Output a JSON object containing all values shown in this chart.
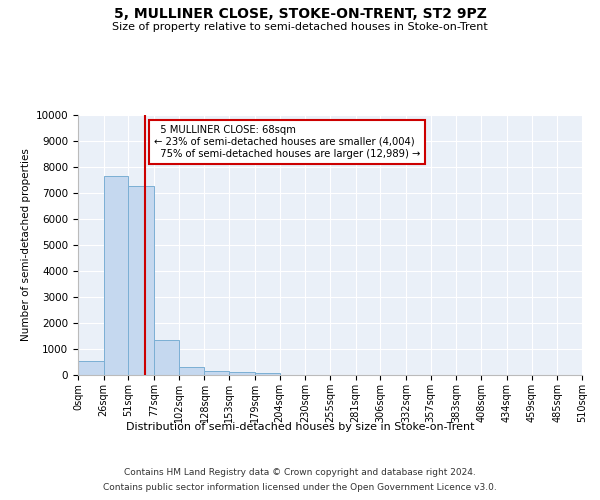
{
  "title": "5, MULLINER CLOSE, STOKE-ON-TRENT, ST2 9PZ",
  "subtitle": "Size of property relative to semi-detached houses in Stoke-on-Trent",
  "xlabel": "Distribution of semi-detached houses by size in Stoke-on-Trent",
  "ylabel": "Number of semi-detached properties",
  "footer_line1": "Contains HM Land Registry data © Crown copyright and database right 2024.",
  "footer_line2": "Contains public sector information licensed under the Open Government Licence v3.0.",
  "bin_labels": [
    "0sqm",
    "26sqm",
    "51sqm",
    "77sqm",
    "102sqm",
    "128sqm",
    "153sqm",
    "179sqm",
    "204sqm",
    "230sqm",
    "255sqm",
    "281sqm",
    "306sqm",
    "332sqm",
    "357sqm",
    "383sqm",
    "408sqm",
    "434sqm",
    "459sqm",
    "485sqm",
    "510sqm"
  ],
  "bar_values": [
    550,
    7650,
    7250,
    1350,
    320,
    155,
    110,
    90,
    0,
    0,
    0,
    0,
    0,
    0,
    0,
    0,
    0,
    0,
    0,
    0
  ],
  "bar_color": "#c5d8ef",
  "bar_edge_color": "#7bafd4",
  "property_size": 68,
  "property_label": "5 MULLINER CLOSE: 68sqm",
  "pct_smaller": 23,
  "pct_smaller_count": 4004,
  "pct_larger": 75,
  "pct_larger_count": 12989,
  "vline_color": "#cc0000",
  "annotation_box_color": "#cc0000",
  "ylim": [
    0,
    10000
  ],
  "plot_bg_color": "#eaf0f8",
  "grid_color": "#ffffff"
}
